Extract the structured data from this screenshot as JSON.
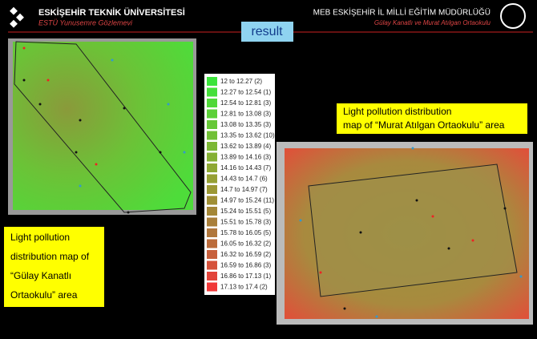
{
  "header": {
    "left_title": "ESKİŞEHİR TEKNİK ÜNİVERSİTESİ",
    "left_subtitle": "ESTÜ Yunusemre Gözlemevi",
    "right_title": "MEB ESKİŞEHİR İL MİLLİ EĞİTİM MÜDÜRLÜĞÜ",
    "right_subtitle": "Gülay Kanatlı ve Murat Atılgan Ortaokulu"
  },
  "slide_title": "result",
  "legend": {
    "items": [
      {
        "label": "12 to 12.27 (2)",
        "color": "#3be43b"
      },
      {
        "label": "12.27 to 12.54 (1)",
        "color": "#45df3a"
      },
      {
        "label": "12.54 to 12.81 (3)",
        "color": "#50d839"
      },
      {
        "label": "12.81 to 13.08 (3)",
        "color": "#5bd038"
      },
      {
        "label": "13.08 to 13.35 (3)",
        "color": "#66c837"
      },
      {
        "label": "13.35 to 13.62 (10)",
        "color": "#71c036"
      },
      {
        "label": "13.62 to 13.89 (4)",
        "color": "#7cb835"
      },
      {
        "label": "13.89 to 14.16 (3)",
        "color": "#85b034"
      },
      {
        "label": "14.16 to 14.43 (7)",
        "color": "#8ea834"
      },
      {
        "label": "14.43 to 14.7 (6)",
        "color": "#96a034"
      },
      {
        "label": "14.7 to 14.97 (7)",
        "color": "#9c9834"
      },
      {
        "label": "14.97 to 15.24 (11)",
        "color": "#a08f35"
      },
      {
        "label": "15.24 to 15.51 (5)",
        "color": "#a48737"
      },
      {
        "label": "15.51 to 15.78 (3)",
        "color": "#a97f3a"
      },
      {
        "label": "15.78 to 16.05 (5)",
        "color": "#b0773c"
      },
      {
        "label": "16.05 to 16.32 (2)",
        "color": "#bb6c3c"
      },
      {
        "label": "16.32 to 16.59 (2)",
        "color": "#c7603c"
      },
      {
        "label": "16.59 to 16.86 (3)",
        "color": "#d5523b"
      },
      {
        "label": "16.86 to 17.13 (1)",
        "color": "#e2443a"
      },
      {
        "label": "17.13 to 17.4 (2)",
        "color": "#f03838"
      }
    ]
  },
  "caption_right": [
    "Light pollution distribution",
    "map of “Murat Atılgan Ortaokulu” area"
  ],
  "caption_left": [
    "Light pollution",
    "distribution map of",
    "“Gülay Kanatlı",
    "Ortaokulu” area"
  ]
}
